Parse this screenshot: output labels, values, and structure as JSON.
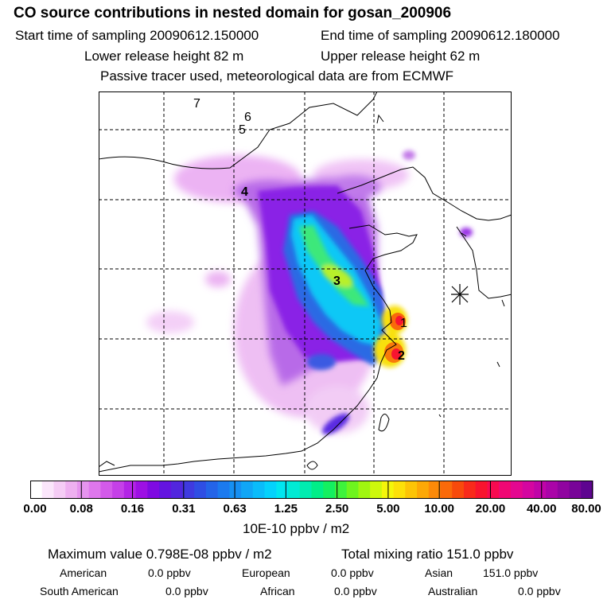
{
  "header": {
    "title": "CO  source contributions in nested domain for gosan_200906",
    "start_label": "Start time of sampling 20090612.150000",
    "end_label": "End time of sampling 20090612.180000",
    "lower_height": "Lower release height   82 m",
    "upper_height": "Upper release height   62 m",
    "note": "Passive tracer used, meteorological data are from ECMWF"
  },
  "map": {
    "point_labels": [
      "1",
      "2",
      "3",
      "4",
      "5",
      "6",
      "7"
    ],
    "receptor_marker": "asterisk"
  },
  "colorbar": {
    "ticks": [
      "0.00",
      "0.08",
      "0.16",
      "0.31",
      "0.63",
      "1.25",
      "2.50",
      "5.00",
      "10.00",
      "20.00",
      "40.00",
      "80.00"
    ],
    "colors": [
      "#ffffff",
      "#fbe6fb",
      "#f5ccf5",
      "#eeb0f0",
      "#e694ee",
      "#de77ec",
      "#d35aea",
      "#c540e8",
      "#b324e6",
      "#9d10e4",
      "#7f0ae2",
      "#6414e0",
      "#5226de",
      "#3f3ae0",
      "#2f4ee4",
      "#2464e8",
      "#1c7aee",
      "#1690f2",
      "#10a6f6",
      "#0abcfa",
      "#04d2fc",
      "#00e6f0",
      "#00ead4",
      "#00ecb0",
      "#00ee88",
      "#14f060",
      "#3ef23c",
      "#6ef41e",
      "#a0f610",
      "#cef80c",
      "#f4f60a",
      "#fce008",
      "#fcc406",
      "#fca806",
      "#fc8a08",
      "#fa6a0a",
      "#f84a0c",
      "#f82a1a",
      "#f8142e",
      "#f80a50",
      "#f00874",
      "#e40890",
      "#d406a0",
      "#c004a8",
      "#aa04a8",
      "#9004a0",
      "#780498",
      "#5e0490"
    ],
    "unit": "10E-10 ppbv / m2"
  },
  "summary": {
    "max_label": "Maximum value  0.798E-08 ppbv / m2",
    "total_label": "Total mixing ratio      151.0 ppbv",
    "american_label": "American",
    "american_value": "0.0 ppbv",
    "european_label": "European",
    "european_value": "0.0 ppbv",
    "asian_label": "Asian",
    "asian_value": "151.0 ppbv",
    "south_american_label": "South American",
    "south_american_value": "0.0 ppbv",
    "african_label": "African",
    "african_value": "0.0 ppbv",
    "australian_label": "Australian",
    "australian_value": "0.0 ppbv"
  }
}
